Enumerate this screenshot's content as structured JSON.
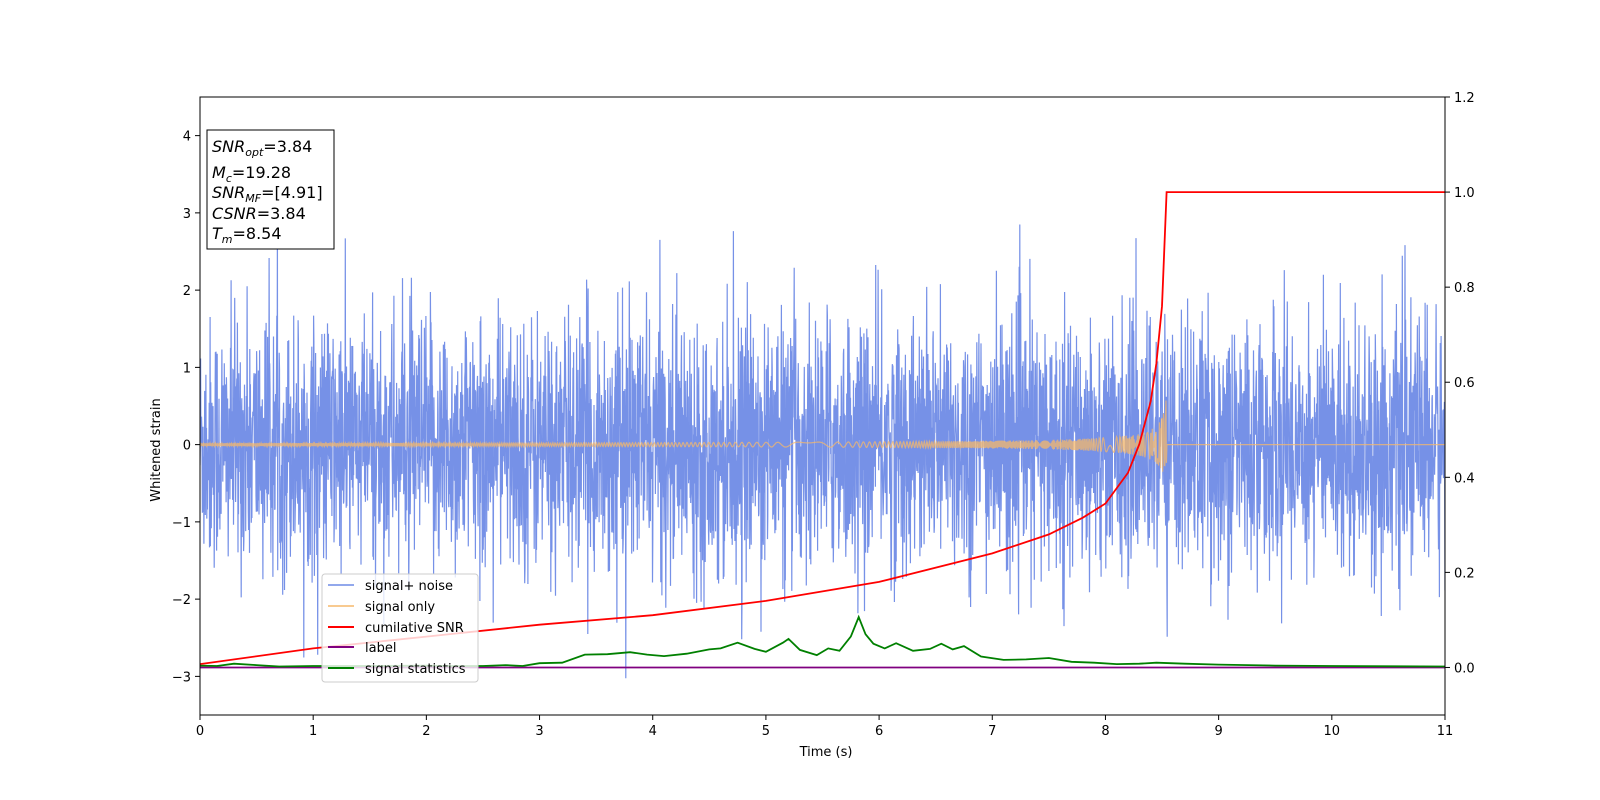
{
  "chart_data": {
    "type": "line",
    "xlabel": "Time (s)",
    "ylabel": "Whitened strain",
    "xlim": [
      0,
      11
    ],
    "ylim": [
      -3.5,
      4.5
    ],
    "y2lim": [
      -0.1,
      1.2
    ],
    "grid": false,
    "legend_placement": "lower-left",
    "x_ticks": [
      "0",
      "1",
      "2",
      "3",
      "4",
      "5",
      "6",
      "7",
      "8",
      "9",
      "10",
      "11"
    ],
    "y_ticks": [
      "−3",
      "−2",
      "−1",
      "0",
      "1",
      "2",
      "3",
      "4"
    ],
    "y2_ticks": [
      "0.0",
      "0.2",
      "0.4",
      "0.6",
      "0.8",
      "1.0",
      "1.2"
    ],
    "stats_box": [
      {
        "base": "SNR",
        "sub": "opt",
        "value": "=3.84"
      },
      {
        "base": "M",
        "sub": "c",
        "value": "=19.28"
      },
      {
        "base": "SNR",
        "sub": "MF",
        "value": "=[4.91]"
      },
      {
        "base": "CSNR",
        "sub": "",
        "value": "=3.84"
      },
      {
        "base": "T",
        "sub": "m",
        "value": "=8.54"
      }
    ],
    "series": [
      {
        "name": "signal+ noise",
        "color": "#6f8be6",
        "axis": "left",
        "description_values": {
          "noise_std": 0.9,
          "max": 2.85,
          "min": -3.12
        }
      },
      {
        "name": "signal only",
        "color": "#f5b86b",
        "axis": "left",
        "chirp": {
          "merger_time": 8.54,
          "peak_amplitude": 0.68
        }
      },
      {
        "name": "cumilative SNR",
        "color": "#ff0000",
        "axis": "right",
        "x": [
          0,
          1,
          2,
          3,
          4,
          5,
          6,
          7,
          7.5,
          7.8,
          8.0,
          8.2,
          8.3,
          8.4,
          8.45,
          8.5,
          8.54,
          8.56,
          11
        ],
        "y": [
          0.007,
          0.04,
          0.065,
          0.09,
          0.11,
          0.14,
          0.18,
          0.24,
          0.28,
          0.315,
          0.345,
          0.41,
          0.47,
          0.56,
          0.64,
          0.76,
          1.0,
          1.0,
          1.0
        ]
      },
      {
        "name": "label",
        "color": "#800080",
        "axis": "right",
        "x": [
          0,
          11
        ],
        "y": [
          0,
          0
        ]
      },
      {
        "name": "signal statistics",
        "color": "#008000",
        "axis": "right",
        "x": [
          0,
          0.15,
          0.3,
          0.5,
          0.7,
          1.0,
          1.5,
          2.0,
          2.2,
          2.5,
          2.7,
          2.85,
          3.0,
          3.2,
          3.4,
          3.6,
          3.8,
          3.95,
          4.1,
          4.3,
          4.5,
          4.6,
          4.75,
          4.9,
          5.0,
          5.15,
          5.2,
          5.3,
          5.45,
          5.55,
          5.65,
          5.75,
          5.82,
          5.88,
          5.95,
          6.05,
          6.15,
          6.3,
          6.45,
          6.55,
          6.65,
          6.75,
          6.9,
          7.1,
          7.3,
          7.5,
          7.7,
          7.9,
          8.1,
          8.3,
          8.45,
          8.7,
          9.0,
          9.5,
          10.0,
          11.0
        ],
        "y": [
          0.004,
          0.003,
          0.008,
          0.005,
          0.002,
          0.003,
          0.003,
          0.004,
          0.003,
          0.003,
          0.005,
          0.003,
          0.009,
          0.01,
          0.027,
          0.028,
          0.032,
          0.027,
          0.024,
          0.029,
          0.038,
          0.04,
          0.052,
          0.039,
          0.033,
          0.052,
          0.06,
          0.037,
          0.026,
          0.04,
          0.035,
          0.065,
          0.106,
          0.07,
          0.05,
          0.04,
          0.051,
          0.035,
          0.039,
          0.05,
          0.038,
          0.045,
          0.023,
          0.016,
          0.017,
          0.02,
          0.012,
          0.01,
          0.007,
          0.008,
          0.01,
          0.008,
          0.006,
          0.004,
          0.003,
          0.002
        ]
      }
    ]
  }
}
